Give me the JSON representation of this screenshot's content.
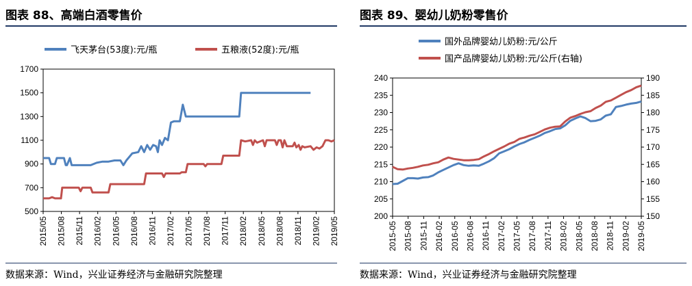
{
  "left": {
    "title": "图表 88、高端白酒零售价",
    "source": "数据来源：Wind，兴业证券经济与金融研究院整理"
  },
  "right": {
    "title": "图表 89、婴幼儿奶粉零售价",
    "source": "数据来源：Wind，兴业证券经济与金融研究院整理"
  },
  "colors": {
    "blue": "#4f81bd",
    "red": "#c0504d",
    "rule": "#1f3864"
  },
  "chart_data": [
    {
      "type": "line",
      "title": "",
      "ylim": [
        500,
        1700
      ],
      "yticks": [
        500,
        700,
        900,
        1100,
        1300,
        1500,
        1700
      ],
      "x_tick_labels": [
        "2015/05",
        "2015/08",
        "2015/11",
        "2016/02",
        "2016/05",
        "2016/08",
        "2016/11",
        "2017/02",
        "2017/05",
        "2017/08",
        "2017/11",
        "2018/02",
        "2018/05",
        "2018/08",
        "2018/11",
        "2019/02",
        "2019/05"
      ],
      "x_range": [
        0,
        49
      ],
      "legend_position": "top",
      "series": [
        {
          "name": "飞天茅台(53度):元/瓶",
          "color": "#4f81bd",
          "points": [
            [
              0,
              950
            ],
            [
              1,
              950
            ],
            [
              1.3,
              900
            ],
            [
              2,
              900
            ],
            [
              2.3,
              950
            ],
            [
              3,
              950
            ],
            [
              3.5,
              950
            ],
            [
              3.8,
              890
            ],
            [
              4,
              890
            ],
            [
              4.5,
              950
            ],
            [
              4.8,
              890
            ],
            [
              5,
              890
            ],
            [
              8,
              890
            ],
            [
              9,
              910
            ],
            [
              10,
              920
            ],
            [
              11,
              920
            ],
            [
              12,
              930
            ],
            [
              13,
              930
            ],
            [
              13.5,
              890
            ],
            [
              14,
              930
            ],
            [
              15,
              990
            ],
            [
              16,
              1000
            ],
            [
              16.5,
              1050
            ],
            [
              17,
              1000
            ],
            [
              17.5,
              1060
            ],
            [
              18,
              1020
            ],
            [
              18.5,
              1060
            ],
            [
              19,
              1050
            ],
            [
              19.3,
              1000
            ],
            [
              19.6,
              1100
            ],
            [
              20,
              1060
            ],
            [
              20.5,
              1120
            ],
            [
              21,
              1100
            ],
            [
              21.5,
              1250
            ],
            [
              22,
              1260
            ],
            [
              23,
              1260
            ],
            [
              23.5,
              1400
            ],
            [
              24,
              1300
            ],
            [
              25,
              1300
            ],
            [
              30,
              1300
            ],
            [
              33,
              1300
            ],
            [
              33.3,
              1500
            ],
            [
              35,
              1500
            ],
            [
              40,
              1500
            ],
            [
              45,
              1500
            ]
          ]
        },
        {
          "name": "五粮液(52度):元/瓶",
          "color": "#c0504d",
          "points": [
            [
              0,
              610
            ],
            [
              1,
              610
            ],
            [
              1.5,
              620
            ],
            [
              2,
              610
            ],
            [
              3,
              610
            ],
            [
              3.2,
              700
            ],
            [
              4,
              700
            ],
            [
              6,
              700
            ],
            [
              6.3,
              670
            ],
            [
              6.6,
              700
            ],
            [
              8,
              700
            ],
            [
              8.3,
              660
            ],
            [
              10,
              660
            ],
            [
              11,
              660
            ],
            [
              11.3,
              730
            ],
            [
              12,
              730
            ],
            [
              17,
              730
            ],
            [
              17.3,
              820
            ],
            [
              20,
              820
            ],
            [
              20.3,
              790
            ],
            [
              20.6,
              820
            ],
            [
              23,
              820
            ],
            [
              23.3,
              830
            ],
            [
              24,
              830
            ],
            [
              24.3,
              900
            ],
            [
              27,
              900
            ],
            [
              27.3,
              880
            ],
            [
              27.6,
              900
            ],
            [
              30,
              900
            ],
            [
              30.3,
              970
            ],
            [
              33,
              970
            ],
            [
              33.3,
              1100
            ],
            [
              34,
              1090
            ],
            [
              35,
              1100
            ],
            [
              35.3,
              1060
            ],
            [
              35.6,
              1100
            ],
            [
              36,
              1080
            ],
            [
              37,
              1100
            ],
            [
              37.3,
              1050
            ],
            [
              37.6,
              1100
            ],
            [
              38,
              1100
            ],
            [
              39,
              1100
            ],
            [
              39.3,
              1060
            ],
            [
              39.6,
              1100
            ],
            [
              40,
              1100
            ],
            [
              40.3,
              1040
            ],
            [
              40.6,
              1100
            ],
            [
              41,
              1050
            ],
            [
              42,
              1050
            ],
            [
              42.3,
              1080
            ],
            [
              42.6,
              1040
            ],
            [
              43,
              1060
            ],
            [
              43.3,
              1020
            ],
            [
              43.6,
              1050
            ],
            [
              44,
              1040
            ],
            [
              45,
              1050
            ],
            [
              45.5,
              1020
            ],
            [
              46,
              1040
            ],
            [
              46.5,
              1030
            ],
            [
              47,
              1050
            ],
            [
              47.5,
              1100
            ],
            [
              48,
              1100
            ],
            [
              48.5,
              1090
            ],
            [
              49,
              1100
            ]
          ]
        }
      ]
    },
    {
      "type": "line",
      "title": "",
      "ylim": [
        200,
        240
      ],
      "yticks": [
        200,
        205,
        210,
        215,
        220,
        225,
        230,
        235,
        240
      ],
      "y2lim": [
        150,
        190
      ],
      "y2ticks": [
        150,
        155,
        160,
        165,
        170,
        175,
        180,
        185,
        190
      ],
      "x_tick_labels": [
        "2015-05",
        "2015-08",
        "2015-11",
        "2016-02",
        "2016-05",
        "2016-08",
        "2016-11",
        "2017-02",
        "2017-05",
        "2017-08",
        "2017-11",
        "2018-02",
        "2018-05",
        "2018-08",
        "2018-11",
        "2019-02",
        "2019-05"
      ],
      "x_range": [
        0,
        49
      ],
      "legend_position": "top",
      "series": [
        {
          "name": "国外品牌婴幼儿奶粉:元/公斤",
          "axis": "left",
          "color": "#4f81bd",
          "points": [
            [
              0,
              209.3
            ],
            [
              1,
              209.4
            ],
            [
              2,
              210.2
            ],
            [
              3,
              211
            ],
            [
              4,
              211
            ],
            [
              5,
              210.9
            ],
            [
              6,
              211.2
            ],
            [
              7,
              211.3
            ],
            [
              8,
              211.8
            ],
            [
              9,
              212.7
            ],
            [
              10,
              213.4
            ],
            [
              11,
              214.1
            ],
            [
              12,
              214.8
            ],
            [
              13,
              215.3
            ],
            [
              14,
              214.8
            ],
            [
              15,
              214.6
            ],
            [
              16,
              214.7
            ],
            [
              17,
              214.6
            ],
            [
              18,
              215.2
            ],
            [
              19,
              215.9
            ],
            [
              20,
              216.8
            ],
            [
              21,
              218.2
            ],
            [
              22,
              218.8
            ],
            [
              23,
              219.4
            ],
            [
              24,
              220.2
            ],
            [
              25,
              220.9
            ],
            [
              26,
              221.4
            ],
            [
              27,
              222.1
            ],
            [
              28,
              222.7
            ],
            [
              29,
              223.3
            ],
            [
              30,
              224.1
            ],
            [
              31,
              224.6
            ],
            [
              32,
              225.2
            ],
            [
              33,
              225.4
            ],
            [
              34,
              226.3
            ],
            [
              35,
              227.6
            ],
            [
              36,
              228.3
            ],
            [
              37,
              228.9
            ],
            [
              38,
              228.4
            ],
            [
              39,
              227.5
            ],
            [
              40,
              227.6
            ],
            [
              41,
              228
            ],
            [
              42,
              229.1
            ],
            [
              43,
              229.5
            ],
            [
              44,
              231.6
            ],
            [
              45,
              231.9
            ],
            [
              46,
              232.3
            ],
            [
              47,
              232.6
            ],
            [
              48,
              232.8
            ],
            [
              49,
              233.2
            ]
          ]
        },
        {
          "name": "国产品牌婴幼儿奶粉:元/公斤(右轴)",
          "axis": "right",
          "color": "#c0504d",
          "points": [
            [
              0,
              164.3
            ],
            [
              1,
              163.6
            ],
            [
              2,
              163.5
            ],
            [
              3,
              163.8
            ],
            [
              4,
              164
            ],
            [
              5,
              164.3
            ],
            [
              6,
              164.7
            ],
            [
              7,
              164.9
            ],
            [
              8,
              165.3
            ],
            [
              9,
              165.6
            ],
            [
              10,
              166.4
            ],
            [
              11,
              167
            ],
            [
              12,
              166.6
            ],
            [
              13,
              166.4
            ],
            [
              14,
              166.2
            ],
            [
              15,
              166.2
            ],
            [
              16,
              166.3
            ],
            [
              17,
              166.5
            ],
            [
              18,
              167.3
            ],
            [
              19,
              168
            ],
            [
              20,
              168.8
            ],
            [
              21,
              169.5
            ],
            [
              22,
              170.2
            ],
            [
              23,
              171
            ],
            [
              24,
              171.5
            ],
            [
              25,
              172.4
            ],
            [
              26,
              172.8
            ],
            [
              27,
              173.3
            ],
            [
              28,
              173.7
            ],
            [
              29,
              174.4
            ],
            [
              30,
              175.1
            ],
            [
              31,
              175.6
            ],
            [
              32,
              175.9
            ],
            [
              33,
              176
            ],
            [
              34,
              177.4
            ],
            [
              35,
              178.5
            ],
            [
              36,
              179
            ],
            [
              37,
              179.6
            ],
            [
              38,
              180.1
            ],
            [
              39,
              180.4
            ],
            [
              40,
              181.3
            ],
            [
              41,
              182
            ],
            [
              42,
              183.1
            ],
            [
              43,
              183.5
            ],
            [
              44,
              184.3
            ],
            [
              45,
              185.1
            ],
            [
              46,
              185.9
            ],
            [
              47,
              186.5
            ],
            [
              48,
              187.3
            ],
            [
              49,
              187.8
            ]
          ]
        }
      ]
    }
  ]
}
